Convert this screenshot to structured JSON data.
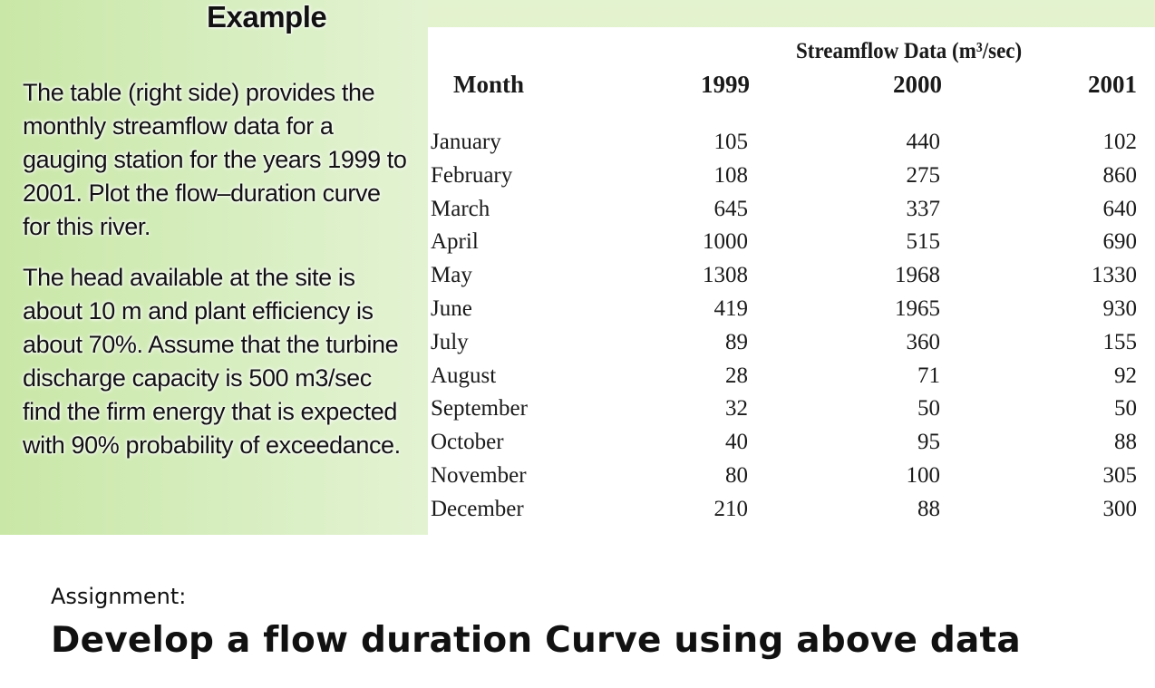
{
  "slide": {
    "heading": "Example",
    "paragraph1": "The table (right side) provides the monthly streamflow data for a gauging station for the years 1999 to 2001. Plot the flow–duration curve for this river.",
    "paragraph2": "The head available at the site is about 10 m and plant efficiency is about 70%. Assume that the turbine discharge capacity is 500 m3/sec find the firm energy that is expected with 90% probability of exceedance."
  },
  "table": {
    "caption": "Streamflow Data (m³/sec)",
    "headers": [
      "Month",
      "1999",
      "2000",
      "2001"
    ],
    "rows": [
      [
        "January",
        "105",
        "440",
        "102"
      ],
      [
        "February",
        "108",
        "275",
        "860"
      ],
      [
        "March",
        "645",
        "337",
        "640"
      ],
      [
        "April",
        "1000",
        "515",
        "690"
      ],
      [
        "May",
        "1308",
        "1968",
        "1330"
      ],
      [
        "June",
        "419",
        "1965",
        "930"
      ],
      [
        "July",
        "89",
        "360",
        "155"
      ],
      [
        "August",
        "28",
        "71",
        "92"
      ],
      [
        "September",
        "32",
        "50",
        "50"
      ],
      [
        "October",
        "40",
        "95",
        "88"
      ],
      [
        "November",
        "80",
        "100",
        "305"
      ],
      [
        "December",
        "210",
        "88",
        "300"
      ]
    ]
  },
  "assignment": {
    "label": "Assignment:",
    "title": "Develop a flow duration Curve using above data"
  },
  "colors": {
    "panel_green": "#d7eec0",
    "text": "#111111",
    "table_bg": "#ffffff"
  }
}
